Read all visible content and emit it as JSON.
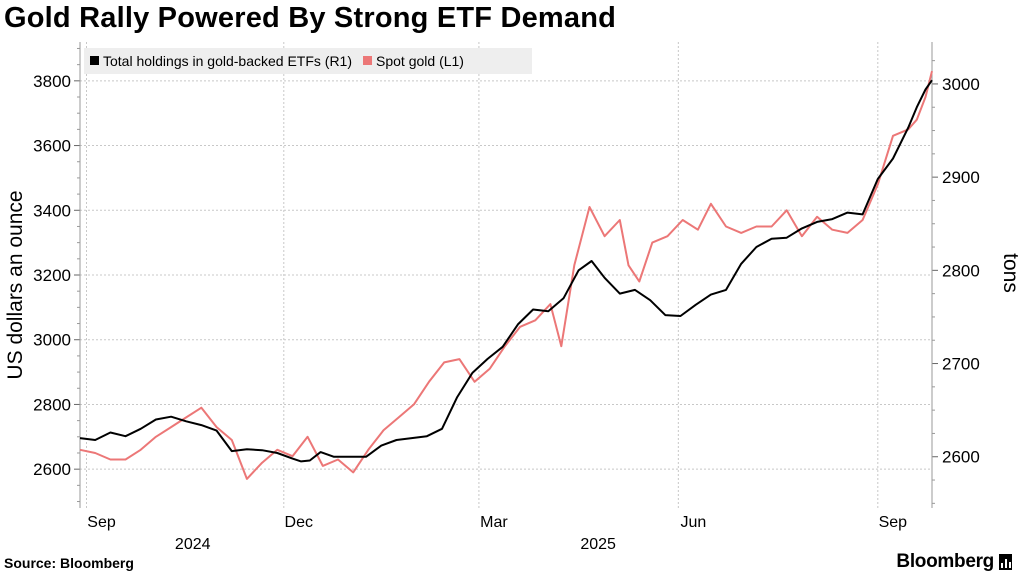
{
  "title": "Gold Rally Powered By Strong ETF Demand",
  "source_label": "Source:",
  "source_name": "Bloomberg",
  "brand": "Bloomberg",
  "chart_data": {
    "type": "line",
    "title": "Gold Rally Powered By Strong ETF Demand",
    "x_tick_labels": [
      "Sep",
      "Dec",
      "Mar",
      "Jun",
      "Sep"
    ],
    "x_tick_dates": [
      "2024-09-01",
      "2024-12-01",
      "2025-03-01",
      "2025-06-01",
      "2025-09-01"
    ],
    "year_labels": [
      {
        "label": "2024",
        "date": "2024-10-20"
      },
      {
        "label": "2025",
        "date": "2025-04-25"
      }
    ],
    "x_range": [
      "2024-08-29",
      "2025-09-26"
    ],
    "y_left": {
      "label": "US dollars an ounce",
      "range": [
        2480,
        3920
      ],
      "ticks": [
        2600,
        2800,
        3000,
        3200,
        3400,
        3600,
        3800
      ]
    },
    "y_right": {
      "label": "tons",
      "range": [
        2545,
        3045
      ],
      "ticks": [
        2600,
        2700,
        2800,
        2900,
        3000
      ]
    },
    "grid": true,
    "legend_position": "top-left",
    "series": [
      {
        "name": "Total holdings in gold-backed ETFs (R1)",
        "axis": "right",
        "color": "#000000",
        "points": [
          [
            "2024-08-29",
            2620
          ],
          [
            "2024-09-05",
            2618
          ],
          [
            "2024-09-12",
            2626
          ],
          [
            "2024-09-19",
            2622
          ],
          [
            "2024-09-26",
            2630
          ],
          [
            "2024-10-03",
            2640
          ],
          [
            "2024-10-10",
            2643
          ],
          [
            "2024-10-17",
            2638
          ],
          [
            "2024-10-24",
            2634
          ],
          [
            "2024-10-31",
            2628
          ],
          [
            "2024-11-07",
            2606
          ],
          [
            "2024-11-14",
            2608
          ],
          [
            "2024-11-21",
            2607
          ],
          [
            "2024-11-28",
            2604
          ],
          [
            "2024-12-05",
            2598
          ],
          [
            "2024-12-09",
            2595
          ],
          [
            "2024-12-13",
            2596
          ],
          [
            "2024-12-18",
            2605
          ],
          [
            "2024-12-24",
            2600
          ],
          [
            "2025-01-01",
            2600
          ],
          [
            "2025-01-08",
            2600
          ],
          [
            "2025-01-15",
            2612
          ],
          [
            "2025-01-22",
            2618
          ],
          [
            "2025-01-29",
            2620
          ],
          [
            "2025-02-05",
            2622
          ],
          [
            "2025-02-12",
            2630
          ],
          [
            "2025-02-19",
            2664
          ],
          [
            "2025-02-26",
            2690
          ],
          [
            "2025-03-05",
            2705
          ],
          [
            "2025-03-12",
            2718
          ],
          [
            "2025-03-19",
            2742
          ],
          [
            "2025-03-26",
            2758
          ],
          [
            "2025-04-02",
            2756
          ],
          [
            "2025-04-09",
            2770
          ],
          [
            "2025-04-16",
            2800
          ],
          [
            "2025-04-22",
            2810
          ],
          [
            "2025-04-28",
            2792
          ],
          [
            "2025-05-05",
            2775
          ],
          [
            "2025-05-12",
            2779
          ],
          [
            "2025-05-19",
            2768
          ],
          [
            "2025-05-26",
            2752
          ],
          [
            "2025-06-02",
            2751
          ],
          [
            "2025-06-09",
            2763
          ],
          [
            "2025-06-16",
            2774
          ],
          [
            "2025-06-23",
            2779
          ],
          [
            "2025-06-30",
            2807
          ],
          [
            "2025-07-07",
            2825
          ],
          [
            "2025-07-14",
            2834
          ],
          [
            "2025-07-21",
            2835
          ],
          [
            "2025-07-28",
            2845
          ],
          [
            "2025-08-04",
            2852
          ],
          [
            "2025-08-11",
            2855
          ],
          [
            "2025-08-18",
            2862
          ],
          [
            "2025-08-25",
            2860
          ],
          [
            "2025-09-01",
            2898
          ],
          [
            "2025-09-08",
            2920
          ],
          [
            "2025-09-15",
            2953
          ],
          [
            "2025-09-19",
            2975
          ],
          [
            "2025-09-23",
            2994
          ],
          [
            "2025-09-26",
            3004
          ]
        ]
      },
      {
        "name": "Spot gold (L1)",
        "axis": "left",
        "color": "#ec7777",
        "points": [
          [
            "2024-08-29",
            2660
          ],
          [
            "2024-09-05",
            2650
          ],
          [
            "2024-09-12",
            2630
          ],
          [
            "2024-09-19",
            2630
          ],
          [
            "2024-09-26",
            2660
          ],
          [
            "2024-10-03",
            2700
          ],
          [
            "2024-10-10",
            2730
          ],
          [
            "2024-10-17",
            2760
          ],
          [
            "2024-10-24",
            2790
          ],
          [
            "2024-10-31",
            2730
          ],
          [
            "2024-11-07",
            2690
          ],
          [
            "2024-11-14",
            2570
          ],
          [
            "2024-11-21",
            2620
          ],
          [
            "2024-11-28",
            2660
          ],
          [
            "2024-12-05",
            2640
          ],
          [
            "2024-12-12",
            2700
          ],
          [
            "2024-12-19",
            2610
          ],
          [
            "2024-12-26",
            2630
          ],
          [
            "2025-01-02",
            2590
          ],
          [
            "2025-01-09",
            2660
          ],
          [
            "2025-01-16",
            2720
          ],
          [
            "2025-01-23",
            2760
          ],
          [
            "2025-01-30",
            2800
          ],
          [
            "2025-02-06",
            2870
          ],
          [
            "2025-02-13",
            2930
          ],
          [
            "2025-02-20",
            2940
          ],
          [
            "2025-02-27",
            2870
          ],
          [
            "2025-03-06",
            2910
          ],
          [
            "2025-03-13",
            2980
          ],
          [
            "2025-03-20",
            3040
          ],
          [
            "2025-03-27",
            3060
          ],
          [
            "2025-04-03",
            3110
          ],
          [
            "2025-04-08",
            2980
          ],
          [
            "2025-04-14",
            3230
          ],
          [
            "2025-04-21",
            3410
          ],
          [
            "2025-04-28",
            3320
          ],
          [
            "2025-05-05",
            3370
          ],
          [
            "2025-05-09",
            3230
          ],
          [
            "2025-05-14",
            3180
          ],
          [
            "2025-05-20",
            3300
          ],
          [
            "2025-05-27",
            3320
          ],
          [
            "2025-06-03",
            3370
          ],
          [
            "2025-06-10",
            3340
          ],
          [
            "2025-06-16",
            3420
          ],
          [
            "2025-06-23",
            3350
          ],
          [
            "2025-06-30",
            3330
          ],
          [
            "2025-07-07",
            3350
          ],
          [
            "2025-07-14",
            3350
          ],
          [
            "2025-07-21",
            3400
          ],
          [
            "2025-07-28",
            3320
          ],
          [
            "2025-08-04",
            3380
          ],
          [
            "2025-08-11",
            3340
          ],
          [
            "2025-08-18",
            3330
          ],
          [
            "2025-08-25",
            3370
          ],
          [
            "2025-09-01",
            3480
          ],
          [
            "2025-09-08",
            3630
          ],
          [
            "2025-09-15",
            3650
          ],
          [
            "2025-09-19",
            3680
          ],
          [
            "2025-09-23",
            3750
          ],
          [
            "2025-09-26",
            3830
          ]
        ]
      }
    ]
  }
}
